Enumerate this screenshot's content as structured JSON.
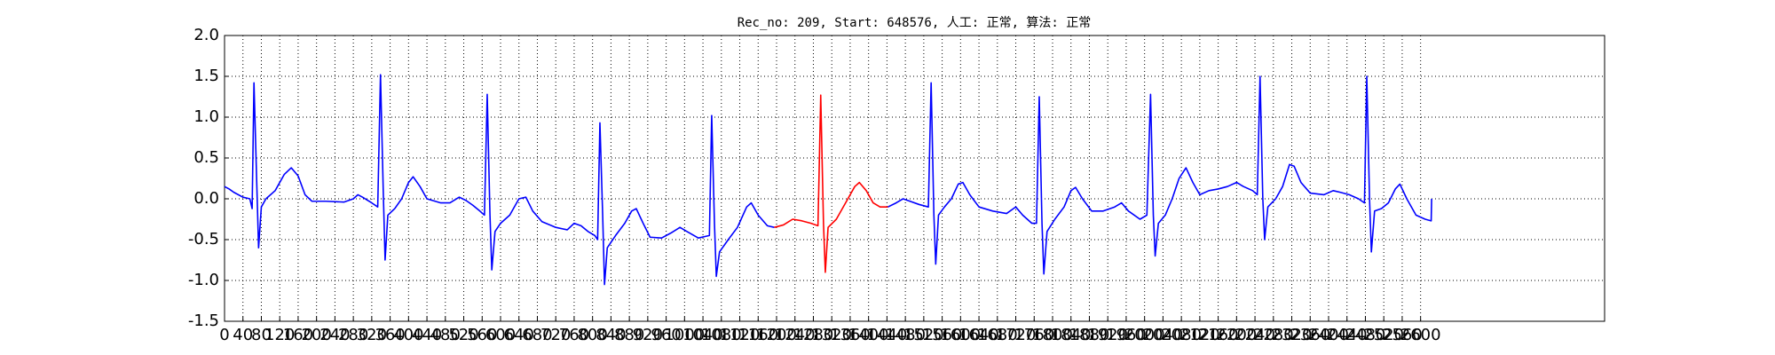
{
  "chart_data": {
    "type": "line",
    "title": "Rec_no: 209, Start: 648576, 人工: 正常, 算法: 正常",
    "xlim": [
      0,
      3000
    ],
    "ylim": [
      -1.5,
      2.0
    ],
    "grid": true,
    "xticks": [
      0,
      40,
      80,
      120,
      160,
      200,
      240,
      280,
      320,
      360,
      400,
      440,
      480,
      520,
      560,
      600,
      640,
      680,
      720,
      760,
      800,
      840,
      880,
      920,
      960,
      1000,
      1040,
      1080,
      1120,
      1160,
      1200,
      1240,
      1280,
      1320,
      1360,
      1400,
      1440,
      1480,
      1520,
      1560,
      1600,
      1640,
      1680,
      1720,
      1760,
      1800,
      1840,
      1880,
      1920,
      1960,
      2000,
      2040,
      2080,
      2120,
      2160,
      2200,
      2240,
      2280,
      2320,
      2360,
      2400,
      2440,
      2480,
      2520,
      2560,
      2600
    ],
    "yticks": [
      {
        "value": 2,
        "label": "2.0"
      },
      1.5,
      {
        "value": 1,
        "label": "1.0"
      },
      0.5,
      {
        "value": 0,
        "label": "0.0"
      },
      -0.5,
      {
        "value": -1,
        "label": "-1.0"
      },
      -1.5
    ],
    "series": [
      {
        "color": "#0000ff",
        "x": [
          0,
          10,
          20,
          40,
          55,
          60,
          64,
          70,
          74,
          80,
          90,
          110,
          130,
          145,
          160,
          175,
          190,
          220,
          260,
          280,
          290,
          300,
          320,
          333,
          339,
          345,
          349,
          355,
          370,
          385,
          400,
          410,
          425,
          440,
          470,
          490,
          510,
          525,
          540,
          555,
          565,
          571,
          577,
          581,
          588,
          600,
          620,
          640,
          655,
          670,
          690,
          720,
          745,
          760,
          775,
          790,
          805,
          811,
          816,
          822,
          826,
          832,
          850,
          870,
          885,
          895,
          910,
          925,
          950,
          970,
          990,
          1005,
          1030,
          1054,
          1059,
          1065,
          1069,
          1076,
          1095,
          1115,
          1135,
          1145,
          1160,
          1180,
          1195,
          null,
          1442,
          1460,
          1475,
          1490,
          1510,
          1530,
          1536,
          1542,
          1546,
          1552,
          1565,
          1580,
          1595,
          1605,
          1620,
          1640,
          1670,
          1700,
          1720,
          1735,
          1755,
          1765,
          1771,
          1777,
          1781,
          1788,
          1805,
          1825,
          1840,
          1850,
          1865,
          1885,
          1910,
          1935,
          1950,
          1965,
          1990,
          2005,
          2013,
          2019,
          2023,
          2030,
          2045,
          2060,
          2075,
          2090,
          2105,
          2120,
          2140,
          2160,
          2180,
          2200,
          2215,
          2235,
          2245,
          2251,
          2257,
          2261,
          2268,
          2285,
          2300,
          2315,
          2325,
          2340,
          2360,
          2390,
          2410,
          2425,
          2445,
          2465,
          2478,
          2483,
          2489,
          2493,
          2500,
          2515,
          2530,
          2545,
          2555,
          2570,
          2590,
          2610,
          2623,
          2624
        ],
        "values": [
          0.15,
          0.12,
          0.08,
          0.02,
          0.0,
          -0.12,
          1.42,
          0.2,
          -0.6,
          -0.1,
          0.0,
          0.1,
          0.3,
          0.38,
          0.28,
          0.05,
          -0.03,
          -0.03,
          -0.04,
          0.0,
          0.05,
          0.02,
          -0.05,
          -0.1,
          1.52,
          0.1,
          -0.75,
          -0.2,
          -0.12,
          0.0,
          0.2,
          0.27,
          0.15,
          0.0,
          -0.05,
          -0.05,
          0.02,
          -0.02,
          -0.08,
          -0.15,
          -0.2,
          1.28,
          -0.2,
          -0.87,
          -0.4,
          -0.3,
          -0.2,
          0.0,
          0.02,
          -0.15,
          -0.28,
          -0.35,
          -0.38,
          -0.3,
          -0.33,
          -0.4,
          -0.45,
          -0.5,
          0.93,
          -0.2,
          -1.05,
          -0.6,
          -0.45,
          -0.3,
          -0.15,
          -0.12,
          -0.3,
          -0.47,
          -0.48,
          -0.42,
          -0.35,
          -0.4,
          -0.48,
          -0.45,
          1.02,
          -0.3,
          -0.95,
          -0.65,
          -0.5,
          -0.35,
          -0.1,
          -0.05,
          -0.2,
          -0.33,
          -0.35,
          null,
          -0.1,
          -0.05,
          0.0,
          -0.03,
          -0.07,
          -0.1,
          1.42,
          -0.2,
          -0.8,
          -0.2,
          -0.1,
          0.0,
          0.18,
          0.2,
          0.05,
          -0.1,
          -0.15,
          -0.18,
          -0.1,
          -0.2,
          -0.3,
          -0.3,
          1.25,
          -0.3,
          -0.92,
          -0.4,
          -0.25,
          -0.1,
          0.1,
          0.14,
          0.0,
          -0.15,
          -0.15,
          -0.1,
          -0.05,
          -0.15,
          -0.25,
          -0.2,
          1.28,
          -0.2,
          -0.7,
          -0.3,
          -0.2,
          0.0,
          0.25,
          0.38,
          0.2,
          0.05,
          0.1,
          0.12,
          0.15,
          0.2,
          0.15,
          0.1,
          0.05,
          1.5,
          0.0,
          -0.5,
          -0.1,
          0.0,
          0.15,
          0.42,
          0.4,
          0.2,
          0.07,
          0.05,
          0.1,
          0.08,
          0.05,
          0.0,
          -0.05,
          1.5,
          0.0,
          -0.65,
          -0.15,
          -0.12,
          -0.05,
          0.12,
          0.18,
          0.0,
          -0.2,
          -0.25,
          -0.27,
          0.0
        ]
      },
      {
        "color": "#ff0000",
        "x": [
          1195,
          1215,
          1235,
          1255,
          1275,
          1290,
          1296,
          1302,
          1306,
          1312,
          1330,
          1350,
          1370,
          1380,
          1395,
          1410,
          1425,
          1442
        ],
        "values": [
          -0.35,
          -0.32,
          -0.25,
          -0.27,
          -0.3,
          -0.33,
          1.27,
          -0.3,
          -0.9,
          -0.35,
          -0.25,
          -0.05,
          0.15,
          0.2,
          0.1,
          -0.05,
          -0.1,
          -0.1
        ]
      }
    ]
  }
}
